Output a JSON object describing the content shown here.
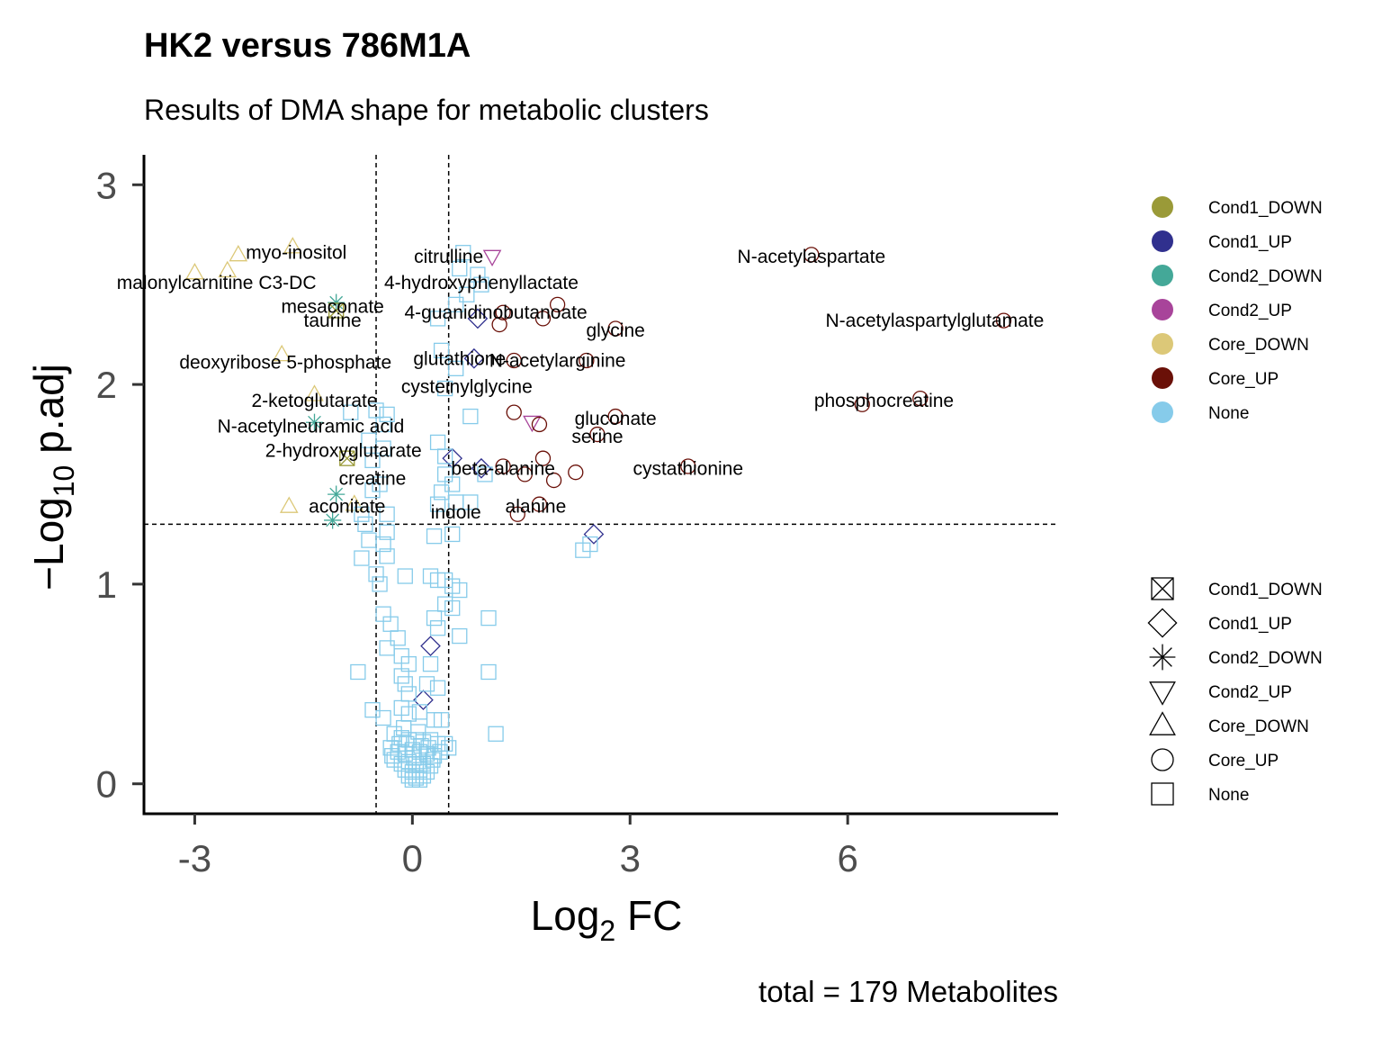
{
  "chart_data": {
    "type": "scatter",
    "title": "HK2 versus 786M1A",
    "subtitle": "Results of DMA shape for metabolic clusters",
    "xlabel_main": "Log",
    "xlabel_sub": "2",
    "xlabel_rest": " FC",
    "ylabel_prefix": "−Log",
    "ylabel_sub": "10",
    "ylabel_rest": " p.adj",
    "caption": "total = 179 Metabolites",
    "xlim": [
      -3.7,
      8.9
    ],
    "ylim": [
      -0.15,
      3.15
    ],
    "xticks": [
      -3,
      0,
      3,
      6
    ],
    "xtick_labels": [
      "-3",
      "0",
      "3",
      "6"
    ],
    "yticks": [
      0,
      1,
      2,
      3
    ],
    "ytick_labels": [
      "0",
      "1",
      "2",
      "3"
    ],
    "thresholds": {
      "x": [
        -0.5,
        0.5
      ],
      "y": 1.3
    },
    "grid": false,
    "legend_placement": "right",
    "colors": {
      "Cond1_DOWN": "#9a9a38",
      "Cond1_UP": "#30308e",
      "Cond2_DOWN": "#44a898",
      "Cond2_UP": "#a8449a",
      "Core_DOWN": "#dcc878",
      "Core_UP": "#6a1008",
      "None": "#86cbea"
    },
    "color_legend": [
      "Cond1_DOWN",
      "Cond1_UP",
      "Cond2_DOWN",
      "Cond2_UP",
      "Core_DOWN",
      "Core_UP",
      "None"
    ],
    "shape_legend": [
      {
        "name": "Cond1_DOWN",
        "shape": "boxcross"
      },
      {
        "name": "Cond1_UP",
        "shape": "diamond"
      },
      {
        "name": "Cond2_DOWN",
        "shape": "asterisk"
      },
      {
        "name": "Cond2_UP",
        "shape": "triangle-down"
      },
      {
        "name": "Core_DOWN",
        "shape": "triangle-up"
      },
      {
        "name": "Core_UP",
        "shape": "circle"
      },
      {
        "name": "None",
        "shape": "square"
      }
    ],
    "labels": [
      {
        "text": "myo-inositol",
        "x": -1.6,
        "y": 2.66
      },
      {
        "text": "malonylcarnitine C3-DC",
        "x": -2.7,
        "y": 2.51
      },
      {
        "text": "mesaconate",
        "x": -1.1,
        "y": 2.39
      },
      {
        "text": "taurine",
        "x": -1.1,
        "y": 2.32
      },
      {
        "text": "deoxyribose 5-phosphate",
        "x": -1.75,
        "y": 2.11
      },
      {
        "text": "2-ketoglutarate",
        "x": -1.35,
        "y": 1.92
      },
      {
        "text": "N-acetylneuramic acid",
        "x": -1.4,
        "y": 1.79
      },
      {
        "text": "2-hydroxyglutarate",
        "x": -0.95,
        "y": 1.67
      },
      {
        "text": "creatine",
        "x": -0.55,
        "y": 1.53
      },
      {
        "text": "aconitate",
        "x": -0.9,
        "y": 1.39
      },
      {
        "text": "citrulline",
        "x": 0.5,
        "y": 2.64
      },
      {
        "text": "4-hydroxyphenyllactate",
        "x": 0.95,
        "y": 2.51
      },
      {
        "text": "4-guanidinobutanoate",
        "x": 1.15,
        "y": 2.36
      },
      {
        "text": "glutathione",
        "x": 0.65,
        "y": 2.13
      },
      {
        "text": "N-acetylarginine",
        "x": 2.0,
        "y": 2.12
      },
      {
        "text": "cysteinylglycine",
        "x": 0.75,
        "y": 1.99
      },
      {
        "text": "glycine",
        "x": 2.8,
        "y": 2.27
      },
      {
        "text": "gluconate",
        "x": 2.8,
        "y": 1.83
      },
      {
        "text": "serine",
        "x": 2.55,
        "y": 1.74
      },
      {
        "text": "beta-alanine",
        "x": 1.25,
        "y": 1.58
      },
      {
        "text": "cystathionine",
        "x": 3.8,
        "y": 1.58
      },
      {
        "text": "alanine",
        "x": 1.7,
        "y": 1.39
      },
      {
        "text": "indole",
        "x": 0.6,
        "y": 1.36
      },
      {
        "text": "N-acetylaspartate",
        "x": 5.5,
        "y": 2.64
      },
      {
        "text": "N-acetylaspartylglutamate",
        "x": 7.2,
        "y": 2.32
      },
      {
        "text": "phosphocreatine",
        "x": 6.5,
        "y": 1.92
      }
    ],
    "points": [
      {
        "x": -1.65,
        "y": 2.69,
        "cls": "Core_DOWN"
      },
      {
        "x": -2.4,
        "y": 2.65,
        "cls": "Core_DOWN"
      },
      {
        "x": -2.55,
        "y": 2.57,
        "cls": "Core_DOWN"
      },
      {
        "x": -3.0,
        "y": 2.56,
        "cls": "Core_DOWN"
      },
      {
        "x": -1.05,
        "y": 2.41,
        "cls": "Cond2_DOWN"
      },
      {
        "x": -1.05,
        "y": 2.37,
        "cls": "Cond1_DOWN"
      },
      {
        "x": -1.8,
        "y": 2.15,
        "cls": "Core_DOWN"
      },
      {
        "x": -1.35,
        "y": 1.95,
        "cls": "Core_DOWN"
      },
      {
        "x": -1.35,
        "y": 1.81,
        "cls": "Cond2_DOWN"
      },
      {
        "x": -0.9,
        "y": 1.63,
        "cls": "Cond1_DOWN"
      },
      {
        "x": -1.05,
        "y": 1.45,
        "cls": "Cond2_DOWN"
      },
      {
        "x": -1.1,
        "y": 1.32,
        "cls": "Cond2_DOWN"
      },
      {
        "x": -1.7,
        "y": 1.39,
        "cls": "Core_DOWN"
      },
      {
        "x": -0.8,
        "y": 1.4,
        "cls": "Core_DOWN"
      },
      {
        "x": 1.1,
        "y": 2.64,
        "cls": "Cond2_UP"
      },
      {
        "x": 0.9,
        "y": 2.33,
        "cls": "Cond1_UP"
      },
      {
        "x": 1.25,
        "y": 2.36,
        "cls": "Core_UP"
      },
      {
        "x": 1.2,
        "y": 2.3,
        "cls": "Core_UP"
      },
      {
        "x": 1.8,
        "y": 2.33,
        "cls": "Core_UP"
      },
      {
        "x": 2.0,
        "y": 2.4,
        "cls": "Core_UP"
      },
      {
        "x": 2.8,
        "y": 2.28,
        "cls": "Core_UP"
      },
      {
        "x": 0.85,
        "y": 2.13,
        "cls": "Cond1_UP"
      },
      {
        "x": 1.4,
        "y": 2.12,
        "cls": "Core_UP"
      },
      {
        "x": 2.4,
        "y": 2.12,
        "cls": "Core_UP"
      },
      {
        "x": 1.4,
        "y": 1.86,
        "cls": "Core_UP"
      },
      {
        "x": 1.65,
        "y": 1.81,
        "cls": "Cond2_UP"
      },
      {
        "x": 1.75,
        "y": 1.8,
        "cls": "Core_UP"
      },
      {
        "x": 2.8,
        "y": 1.84,
        "cls": "Core_UP"
      },
      {
        "x": 2.55,
        "y": 1.75,
        "cls": "Core_UP"
      },
      {
        "x": 0.55,
        "y": 1.63,
        "cls": "Cond1_UP"
      },
      {
        "x": 0.95,
        "y": 1.58,
        "cls": "Cond1_UP"
      },
      {
        "x": 1.25,
        "y": 1.59,
        "cls": "Core_UP"
      },
      {
        "x": 1.55,
        "y": 1.55,
        "cls": "Core_UP"
      },
      {
        "x": 1.8,
        "y": 1.63,
        "cls": "Core_UP"
      },
      {
        "x": 1.95,
        "y": 1.52,
        "cls": "Core_UP"
      },
      {
        "x": 2.25,
        "y": 1.56,
        "cls": "Core_UP"
      },
      {
        "x": 3.8,
        "y": 1.59,
        "cls": "Core_UP"
      },
      {
        "x": 1.45,
        "y": 1.35,
        "cls": "Core_UP"
      },
      {
        "x": 1.75,
        "y": 1.4,
        "cls": "Core_UP"
      },
      {
        "x": 2.5,
        "y": 1.25,
        "cls": "Cond1_UP"
      },
      {
        "x": 0.25,
        "y": 0.69,
        "cls": "Cond1_UP"
      },
      {
        "x": 0.15,
        "y": 0.42,
        "cls": "Cond1_UP"
      },
      {
        "x": 5.5,
        "y": 2.65,
        "cls": "Core_UP"
      },
      {
        "x": 8.15,
        "y": 2.32,
        "cls": "Core_UP"
      },
      {
        "x": 7.0,
        "y": 1.93,
        "cls": "Core_UP"
      },
      {
        "x": 6.2,
        "y": 1.9,
        "cls": "Core_UP"
      },
      {
        "x": 0.7,
        "y": 2.66,
        "cls": "None"
      },
      {
        "x": 0.65,
        "y": 2.58,
        "cls": "None"
      },
      {
        "x": 0.9,
        "y": 2.55,
        "cls": "None"
      },
      {
        "x": 0.95,
        "y": 2.5,
        "cls": "None"
      },
      {
        "x": 0.75,
        "y": 2.45,
        "cls": "None"
      },
      {
        "x": 0.6,
        "y": 2.4,
        "cls": "None"
      },
      {
        "x": 0.35,
        "y": 2.33,
        "cls": "None"
      },
      {
        "x": 0.4,
        "y": 2.17,
        "cls": "None"
      },
      {
        "x": 0.6,
        "y": 2.08,
        "cls": "None"
      },
      {
        "x": 0.45,
        "y": 1.98,
        "cls": "None"
      },
      {
        "x": -0.35,
        "y": 1.85,
        "cls": "None"
      },
      {
        "x": -0.4,
        "y": 1.8,
        "cls": "None"
      },
      {
        "x": -0.5,
        "y": 1.87,
        "cls": "None"
      },
      {
        "x": -0.85,
        "y": 1.86,
        "cls": "None"
      },
      {
        "x": -0.6,
        "y": 1.72,
        "cls": "None"
      },
      {
        "x": -0.4,
        "y": 1.68,
        "cls": "None"
      },
      {
        "x": -0.55,
        "y": 1.62,
        "cls": "None"
      },
      {
        "x": 0.35,
        "y": 1.71,
        "cls": "None"
      },
      {
        "x": 0.45,
        "y": 1.64,
        "cls": "None"
      },
      {
        "x": 0.8,
        "y": 1.84,
        "cls": "None"
      },
      {
        "x": 0.45,
        "y": 1.55,
        "cls": "None"
      },
      {
        "x": 0.55,
        "y": 1.5,
        "cls": "None"
      },
      {
        "x": 0.4,
        "y": 1.46,
        "cls": "None"
      },
      {
        "x": -0.45,
        "y": 1.5,
        "cls": "None"
      },
      {
        "x": -0.55,
        "y": 1.47,
        "cls": "None"
      },
      {
        "x": 0.35,
        "y": 1.4,
        "cls": "None"
      },
      {
        "x": 0.6,
        "y": 1.41,
        "cls": "None"
      },
      {
        "x": 0.8,
        "y": 1.41,
        "cls": "None"
      },
      {
        "x": 1.0,
        "y": 1.55,
        "cls": "None"
      },
      {
        "x": -0.7,
        "y": 1.35,
        "cls": "None"
      },
      {
        "x": -0.35,
        "y": 1.35,
        "cls": "None"
      },
      {
        "x": -0.65,
        "y": 1.3,
        "cls": "None"
      },
      {
        "x": -0.6,
        "y": 1.22,
        "cls": "None"
      },
      {
        "x": -0.35,
        "y": 1.26,
        "cls": "None"
      },
      {
        "x": -0.4,
        "y": 1.2,
        "cls": "None"
      },
      {
        "x": -0.7,
        "y": 1.13,
        "cls": "None"
      },
      {
        "x": -0.35,
        "y": 1.14,
        "cls": "None"
      },
      {
        "x": 0.3,
        "y": 1.24,
        "cls": "None"
      },
      {
        "x": 0.55,
        "y": 1.25,
        "cls": "None"
      },
      {
        "x": 2.35,
        "y": 1.17,
        "cls": "None"
      },
      {
        "x": 2.45,
        "y": 1.2,
        "cls": "None"
      },
      {
        "x": -0.5,
        "y": 1.05,
        "cls": "None"
      },
      {
        "x": -0.45,
        "y": 1.0,
        "cls": "None"
      },
      {
        "x": -0.1,
        "y": 1.04,
        "cls": "None"
      },
      {
        "x": 0.25,
        "y": 1.04,
        "cls": "None"
      },
      {
        "x": 0.35,
        "y": 1.02,
        "cls": "None"
      },
      {
        "x": 0.45,
        "y": 1.02,
        "cls": "None"
      },
      {
        "x": 0.55,
        "y": 0.99,
        "cls": "None"
      },
      {
        "x": 0.65,
        "y": 0.97,
        "cls": "None"
      },
      {
        "x": 0.45,
        "y": 0.9,
        "cls": "None"
      },
      {
        "x": 0.55,
        "y": 0.88,
        "cls": "None"
      },
      {
        "x": -0.4,
        "y": 0.85,
        "cls": "None"
      },
      {
        "x": -0.3,
        "y": 0.8,
        "cls": "None"
      },
      {
        "x": 0.3,
        "y": 0.83,
        "cls": "None"
      },
      {
        "x": 0.35,
        "y": 0.78,
        "cls": "None"
      },
      {
        "x": 1.05,
        "y": 0.83,
        "cls": "None"
      },
      {
        "x": -0.2,
        "y": 0.73,
        "cls": "None"
      },
      {
        "x": -0.35,
        "y": 0.68,
        "cls": "None"
      },
      {
        "x": -0.15,
        "y": 0.64,
        "cls": "None"
      },
      {
        "x": -0.05,
        "y": 0.6,
        "cls": "None"
      },
      {
        "x": 0.25,
        "y": 0.6,
        "cls": "None"
      },
      {
        "x": 0.65,
        "y": 0.74,
        "cls": "None"
      },
      {
        "x": -0.75,
        "y": 0.56,
        "cls": "None"
      },
      {
        "x": -0.15,
        "y": 0.54,
        "cls": "None"
      },
      {
        "x": -0.1,
        "y": 0.5,
        "cls": "None"
      },
      {
        "x": -0.05,
        "y": 0.45,
        "cls": "None"
      },
      {
        "x": 0.2,
        "y": 0.5,
        "cls": "None"
      },
      {
        "x": 0.35,
        "y": 0.48,
        "cls": "None"
      },
      {
        "x": 1.05,
        "y": 0.56,
        "cls": "None"
      },
      {
        "x": -0.55,
        "y": 0.37,
        "cls": "None"
      },
      {
        "x": -0.15,
        "y": 0.38,
        "cls": "None"
      },
      {
        "x": -0.05,
        "y": 0.35,
        "cls": "None"
      },
      {
        "x": 0.3,
        "y": 0.32,
        "cls": "None"
      },
      {
        "x": 0.4,
        "y": 0.32,
        "cls": "None"
      },
      {
        "x": -0.4,
        "y": 0.33,
        "cls": "None"
      },
      {
        "x": 0.1,
        "y": 0.36,
        "cls": "None"
      },
      {
        "x": -0.25,
        "y": 0.25,
        "cls": "None"
      },
      {
        "x": -0.15,
        "y": 0.23,
        "cls": "None"
      },
      {
        "x": -0.05,
        "y": 0.22,
        "cls": "None"
      },
      {
        "x": 0.05,
        "y": 0.22,
        "cls": "None"
      },
      {
        "x": 0.15,
        "y": 0.21,
        "cls": "None"
      },
      {
        "x": 0.25,
        "y": 0.22,
        "cls": "None"
      },
      {
        "x": 0.35,
        "y": 0.2,
        "cls": "None"
      },
      {
        "x": 0.45,
        "y": 0.2,
        "cls": "None"
      },
      {
        "x": 1.15,
        "y": 0.25,
        "cls": "None"
      },
      {
        "x": -0.3,
        "y": 0.18,
        "cls": "None"
      },
      {
        "x": -0.2,
        "y": 0.16,
        "cls": "None"
      },
      {
        "x": -0.1,
        "y": 0.15,
        "cls": "None"
      },
      {
        "x": 0.0,
        "y": 0.17,
        "cls": "None"
      },
      {
        "x": 0.1,
        "y": 0.16,
        "cls": "None"
      },
      {
        "x": 0.2,
        "y": 0.15,
        "cls": "None"
      },
      {
        "x": 0.3,
        "y": 0.14,
        "cls": "None"
      },
      {
        "x": 0.5,
        "y": 0.18,
        "cls": "None"
      },
      {
        "x": -0.25,
        "y": 0.12,
        "cls": "None"
      },
      {
        "x": -0.15,
        "y": 0.1,
        "cls": "None"
      },
      {
        "x": -0.05,
        "y": 0.11,
        "cls": "None"
      },
      {
        "x": 0.05,
        "y": 0.1,
        "cls": "None"
      },
      {
        "x": 0.15,
        "y": 0.1,
        "cls": "None"
      },
      {
        "x": 0.25,
        "y": 0.09,
        "cls": "None"
      },
      {
        "x": -0.1,
        "y": 0.07,
        "cls": "None"
      },
      {
        "x": 0.0,
        "y": 0.06,
        "cls": "None"
      },
      {
        "x": 0.1,
        "y": 0.07,
        "cls": "None"
      },
      {
        "x": 0.2,
        "y": 0.06,
        "cls": "None"
      },
      {
        "x": -0.05,
        "y": 0.04,
        "cls": "None"
      },
      {
        "x": 0.05,
        "y": 0.03,
        "cls": "None"
      },
      {
        "x": 0.15,
        "y": 0.04,
        "cls": "None"
      },
      {
        "x": 0.0,
        "y": 0.02,
        "cls": "None"
      },
      {
        "x": 0.1,
        "y": 0.02,
        "cls": "None"
      },
      {
        "x": -0.08,
        "y": 0.2,
        "cls": "None"
      },
      {
        "x": 0.12,
        "y": 0.19,
        "cls": "None"
      },
      {
        "x": 0.22,
        "y": 0.18,
        "cls": "None"
      },
      {
        "x": -0.18,
        "y": 0.2,
        "cls": "None"
      },
      {
        "x": 0.28,
        "y": 0.12,
        "cls": "None"
      },
      {
        "x": -0.28,
        "y": 0.14,
        "cls": "None"
      },
      {
        "x": 0.38,
        "y": 0.16,
        "cls": "None"
      },
      {
        "x": 0.02,
        "y": 0.13,
        "cls": "None"
      },
      {
        "x": 0.08,
        "y": 0.26,
        "cls": "None"
      },
      {
        "x": -0.12,
        "y": 0.28,
        "cls": "None"
      }
    ]
  }
}
